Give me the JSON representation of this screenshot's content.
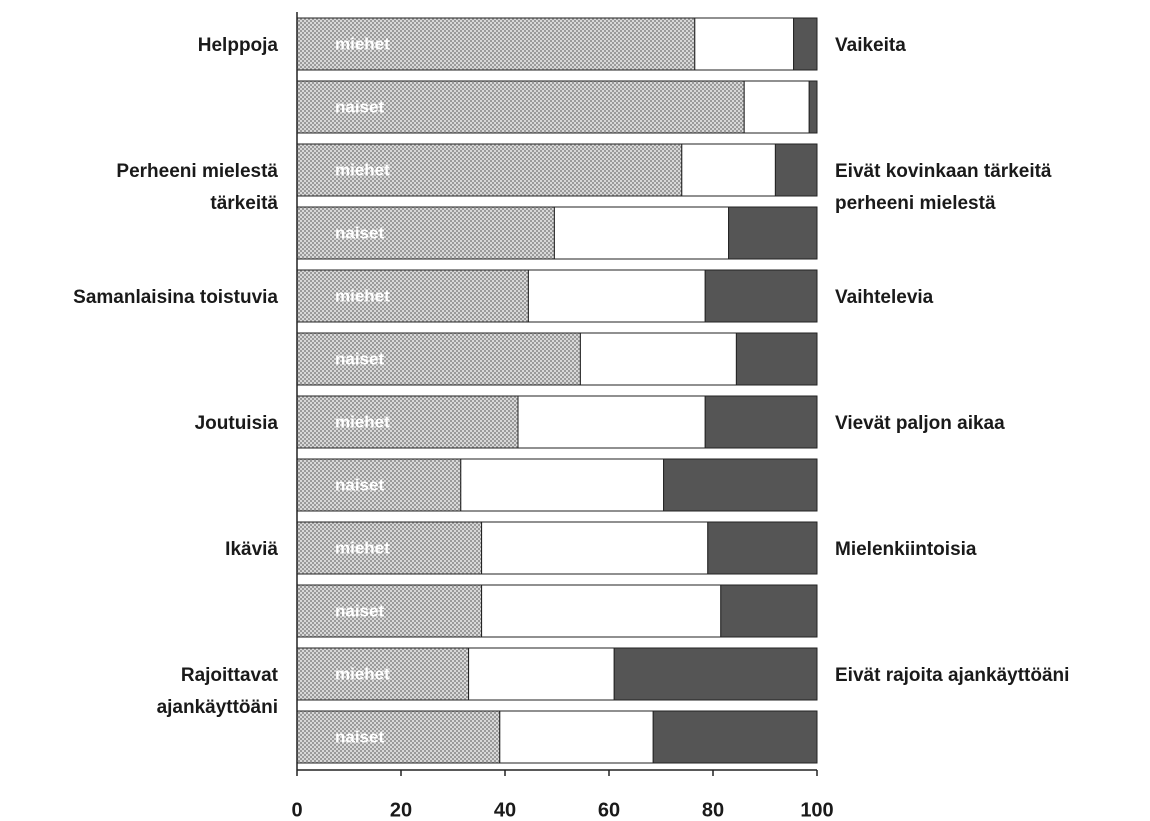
{
  "chart_data": {
    "type": "stacked-barh",
    "categories": [
      "miehet",
      "naiset",
      "miehet",
      "naiset",
      "miehet",
      "naiset",
      "miehet",
      "naiset",
      "miehet",
      "naiset",
      "miehet",
      "naiset"
    ],
    "left_labels": [
      [
        "Helppoja"
      ],
      [
        "Perheeni mielestä",
        "tärkeitä"
      ],
      [
        "Samanlaisina toistuvia"
      ],
      [
        "Joutuisia"
      ],
      [
        "Ikäviä"
      ],
      [
        "Rajoittavat",
        "ajankäyttöäni"
      ]
    ],
    "right_labels": [
      [
        "Vaikeita"
      ],
      [
        "Eivät kovinkaan tärkeitä",
        "perheeni mielestä"
      ],
      [
        "Vaihtelevia"
      ],
      [
        "Vievät paljon aikaa"
      ],
      [
        "Mielenkiintoisia"
      ],
      [
        "Eivät rajoita ajankäyttöäni"
      ]
    ],
    "series": [
      {
        "color": "#9a9a9a",
        "pattern": true,
        "values": [
          76.5,
          86,
          74,
          49.5,
          44.5,
          54.5,
          42.5,
          31.5,
          35.5,
          35.5,
          33,
          39
        ]
      },
      {
        "color": "#ffffff",
        "values": [
          19,
          12.5,
          18,
          33.5,
          34,
          30,
          36,
          39,
          43.5,
          46,
          28,
          29.5
        ]
      },
      {
        "color": "#555555",
        "values": [
          4.5,
          1.5,
          8,
          17,
          21.5,
          15.5,
          21.5,
          29.5,
          21,
          18.5,
          39,
          31.5
        ]
      }
    ],
    "xlim": [
      0,
      100
    ],
    "xticks": [
      0,
      20,
      40,
      60,
      80,
      100
    ]
  }
}
